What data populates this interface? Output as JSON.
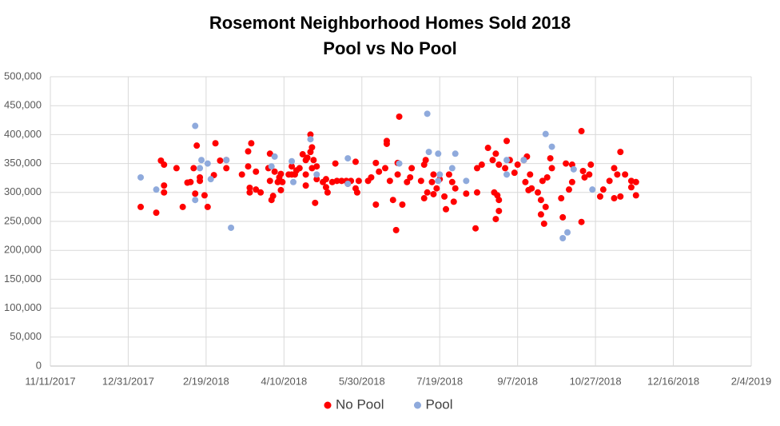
{
  "chart_data": {
    "type": "scatter",
    "title": "Rosemont Neighborhood Homes Sold 2018",
    "subtitle": "Pool vs No Pool",
    "xlim": [
      "11/11/2017",
      "2/4/2019"
    ],
    "xticks": [
      "11/11/2017",
      "12/31/2017",
      "2/19/2018",
      "4/10/2018",
      "5/30/2018",
      "7/19/2018",
      "9/7/2018",
      "10/27/2018",
      "12/16/2018",
      "2/4/2019"
    ],
    "ylim": [
      0,
      500000
    ],
    "yticks": [
      0,
      {
        "value": 50000,
        "label": "50,000"
      },
      {
        "value": 100000,
        "label": "100,000"
      },
      {
        "value": 150000,
        "label": "150,000"
      },
      {
        "value": 200000,
        "label": "200,000"
      },
      {
        "value": 250000,
        "label": "250,000"
      },
      {
        "value": 300000,
        "label": "300,000"
      },
      {
        "value": 350000,
        "label": "350,000"
      },
      {
        "value": 400000,
        "label": "400,000"
      },
      {
        "value": 450000,
        "label": "450,000"
      },
      {
        "value": 500000,
        "label": "500,000"
      }
    ],
    "grid": true,
    "legend": "bottom",
    "series": [
      {
        "name": "No Pool",
        "color": "#ff0000",
        "x": [
          "1/8/2018",
          "1/18/2018",
          "1/21/2018",
          "1/23/2018",
          "1/23/2018",
          "1/23/2018",
          "1/31/2018",
          "2/4/2018",
          "2/7/2018",
          "2/9/2018",
          "2/11/2018",
          "2/12/2018",
          "2/13/2018",
          "2/15/2018",
          "2/15/2018",
          "2/18/2018",
          "2/20/2018",
          "2/24/2018",
          "2/25/2018",
          "2/28/2018",
          "3/4/2018",
          "3/4/2018",
          "3/14/2018",
          "3/18/2018",
          "3/18/2018",
          "3/19/2018",
          "3/19/2018",
          "3/20/2018",
          "3/23/2018",
          "3/23/2018",
          "3/26/2018",
          "4/1/2018",
          "3/31/2018",
          "4/2/2018",
          "4/3/2018",
          "4/1/2018",
          "4/4/2018",
          "4/6/2018",
          "4/7/2018",
          "4/8/2018",
          "4/8/2018",
          "4/9/2018",
          "4/13/2018",
          "4/15/2018",
          "4/15/2018",
          "4/17/2018",
          "4/18/2018",
          "4/20/2018",
          "4/22/2018",
          "4/24/2018",
          "4/24/2018",
          "4/24/2018",
          "4/25/2018",
          "4/27/2018",
          "4/27/2018",
          "4/28/2018",
          "4/28/2018",
          "4/30/2018",
          "4/29/2018",
          "5/1/2018",
          "5/1/2018",
          "5/5/2018",
          "5/7/2018",
          "5/8/2018",
          "5/7/2018",
          "5/11/2018",
          "5/13/2018",
          "5/14/2018",
          "5/17/2018",
          "5/20/2018",
          "5/21/2018",
          "5/23/2018",
          "5/26/2018",
          "5/26/2018",
          "5/27/2018",
          "5/28/2018",
          "6/3/2018",
          "6/5/2018",
          "6/8/2018",
          "6/8/2018",
          "6/10/2018",
          "6/14/2018",
          "6/15/2018",
          "6/15/2018",
          "6/17/2018",
          "6/19/2018",
          "6/21/2018",
          "6/22/2018",
          "6/22/2018",
          "6/23/2018",
          "6/25/2018",
          "6/28/2018",
          "6/30/2018",
          "7/1/2018",
          "7/7/2018",
          "7/9/2018",
          "7/9/2018",
          "7/10/2018",
          "7/11/2018",
          "7/14/2018",
          "7/15/2018",
          "7/15/2018",
          "7/17/2018",
          "7/19/2018",
          "7/22/2018",
          "7/23/2018",
          "7/25/2018",
          "7/27/2018",
          "7/28/2018",
          "7/29/2018",
          "8/5/2018",
          "8/11/2018",
          "8/12/2018",
          "8/12/2018",
          "8/15/2018",
          "8/19/2018",
          "8/22/2018",
          "8/24/2018",
          "8/23/2018",
          "8/24/2018",
          "8/25/2018",
          "8/26/2018",
          "8/26/2018",
          "8/26/2018",
          "8/30/2018",
          "8/31/2018",
          "9/2/2018",
          "9/5/2018",
          "9/7/2018",
          "9/11/2018",
          "9/12/2018",
          "9/13/2018",
          "9/14/2018",
          "9/15/2018",
          "9/16/2018",
          "9/20/2018",
          "9/22/2018",
          "9/22/2018",
          "9/23/2018",
          "9/24/2018",
          "9/25/2018",
          "9/26/2018",
          "9/28/2018",
          "9/29/2018",
          "10/5/2018",
          "10/6/2018",
          "10/8/2018",
          "10/10/2018",
          "10/12/2018",
          "10/12/2018",
          "10/18/2018",
          "10/18/2018",
          "10/19/2018",
          "10/20/2018",
          "10/23/2018",
          "10/24/2018",
          "10/30/2018",
          "11/1/2018",
          "11/5/2018",
          "11/8/2018",
          "11/8/2018",
          "11/10/2018",
          "11/12/2018",
          "11/12/2018",
          "11/15/2018",
          "11/19/2018",
          "11/19/2018",
          "11/22/2018",
          "11/22/2018"
        ],
        "values": [
          275000,
          265000,
          355000,
          348000,
          312000,
          300000,
          342000,
          275000,
          317000,
          318000,
          342000,
          298000,
          381000,
          320000,
          326000,
          295000,
          275000,
          330000,
          385000,
          355000,
          342000,
          356000,
          331000,
          371000,
          345000,
          308000,
          300000,
          385000,
          336000,
          305000,
          300000,
          367000,
          342000,
          287000,
          294000,
          320000,
          336000,
          318000,
          326000,
          332000,
          304000,
          318000,
          331000,
          331000,
          345000,
          331000,
          338000,
          342000,
          366000,
          331000,
          356000,
          312000,
          360000,
          400000,
          370000,
          378000,
          342000,
          282000,
          356000,
          345000,
          323000,
          318000,
          309000,
          300000,
          323000,
          318000,
          350000,
          320000,
          320000,
          320000,
          315000,
          320000,
          353000,
          307000,
          300000,
          320000,
          320000,
          326000,
          351000,
          279000,
          336000,
          342000,
          389000,
          384000,
          320000,
          287000,
          235000,
          331000,
          351000,
          431000,
          279000,
          318000,
          326000,
          342000,
          320000,
          348000,
          290000,
          356000,
          300000,
          318000,
          331000,
          297000,
          307000,
          323000,
          293000,
          271000,
          331000,
          318000,
          284000,
          307000,
          298000,
          238000,
          342000,
          300000,
          348000,
          377000,
          356000,
          367000,
          300000,
          254000,
          295000,
          287000,
          268000,
          348000,
          342000,
          389000,
          356000,
          334000,
          348000,
          356000,
          318000,
          362000,
          304000,
          331000,
          307000,
          300000,
          287000,
          262000,
          320000,
          246000,
          275000,
          326000,
          359000,
          342000,
          290000,
          257000,
          350000,
          305000,
          318000,
          348000,
          249000,
          406000,
          337000,
          326000,
          331000,
          348000,
          293000,
          305000,
          320000,
          342000,
          290000,
          331000,
          370000,
          293000,
          331000,
          320000,
          309000,
          318000,
          295000
        ]
      },
      {
        "name": "Pool",
        "color": "#8faadc",
        "x": [
          "1/8/2018",
          "1/18/2018",
          "2/12/2018",
          "2/12/2018",
          "2/15/2018",
          "2/16/2018",
          "2/20/2018",
          "2/22/2018",
          "3/4/2018",
          "3/7/2018",
          "4/2/2018",
          "4/4/2018",
          "4/15/2018",
          "4/16/2018",
          "4/27/2018",
          "5/1/2018",
          "5/21/2018",
          "5/21/2018",
          "6/23/2018",
          "7/11/2018",
          "7/12/2018",
          "7/18/2018",
          "7/18/2018",
          "7/19/2018",
          "7/27/2018",
          "7/29/2018",
          "8/5/2018",
          "8/31/2018",
          "8/31/2018",
          "9/11/2018",
          "9/25/2018",
          "9/29/2018",
          "10/6/2018",
          "10/9/2018",
          "10/13/2018",
          "10/25/2018"
        ],
        "values": [
          326000,
          305000,
          287000,
          415000,
          342000,
          356000,
          350000,
          323000,
          356000,
          239000,
          345000,
          362000,
          354000,
          318000,
          392000,
          331000,
          359000,
          315000,
          350000,
          436000,
          370000,
          367000,
          320000,
          331000,
          342000,
          367000,
          320000,
          331000,
          356000,
          356000,
          401000,
          379000,
          221000,
          231000,
          340000,
          305000
        ]
      }
    ]
  }
}
